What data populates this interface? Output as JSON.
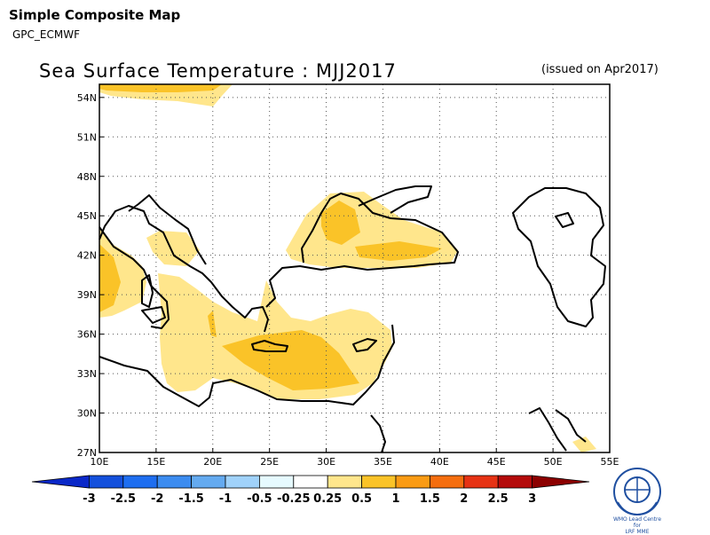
{
  "header": {
    "title": "Simple Composite Map",
    "subtitle": "GPC_ECMWF"
  },
  "map": {
    "title": "Sea Surface Temperature : MJJ2017",
    "issued": "(issued on Apr2017)",
    "lat_ticks": [
      "27N",
      "30N",
      "33N",
      "36N",
      "39N",
      "42N",
      "45N",
      "48N",
      "51N",
      "54N"
    ],
    "lon_ticks": [
      "10E",
      "15E",
      "20E",
      "25E",
      "30E",
      "35E",
      "40E",
      "45E",
      "50E",
      "55E"
    ],
    "lat_range": [
      27,
      55
    ],
    "lon_range": [
      10,
      55
    ],
    "grid": "dotted"
  },
  "legend": {
    "labels": [
      "-3",
      "-2.5",
      "-2",
      "-1.5",
      "-1",
      "-0.5",
      "-0.25",
      "0.25",
      "0.5",
      "1",
      "1.5",
      "2",
      "2.5",
      "3"
    ],
    "colors": [
      "#0a28c8",
      "#1450dc",
      "#1e6ef0",
      "#3c8cf0",
      "#64aaf0",
      "#a0d2fa",
      "#e6faff",
      "#ffffff",
      "#ffe68c",
      "#fac328",
      "#fa9b14",
      "#f56e0f",
      "#e63214",
      "#b40a0a",
      "#8c0000"
    ]
  },
  "logo": {
    "caption_line1": "WMO Lead Centre for",
    "caption_line2": "LRF MME"
  }
}
